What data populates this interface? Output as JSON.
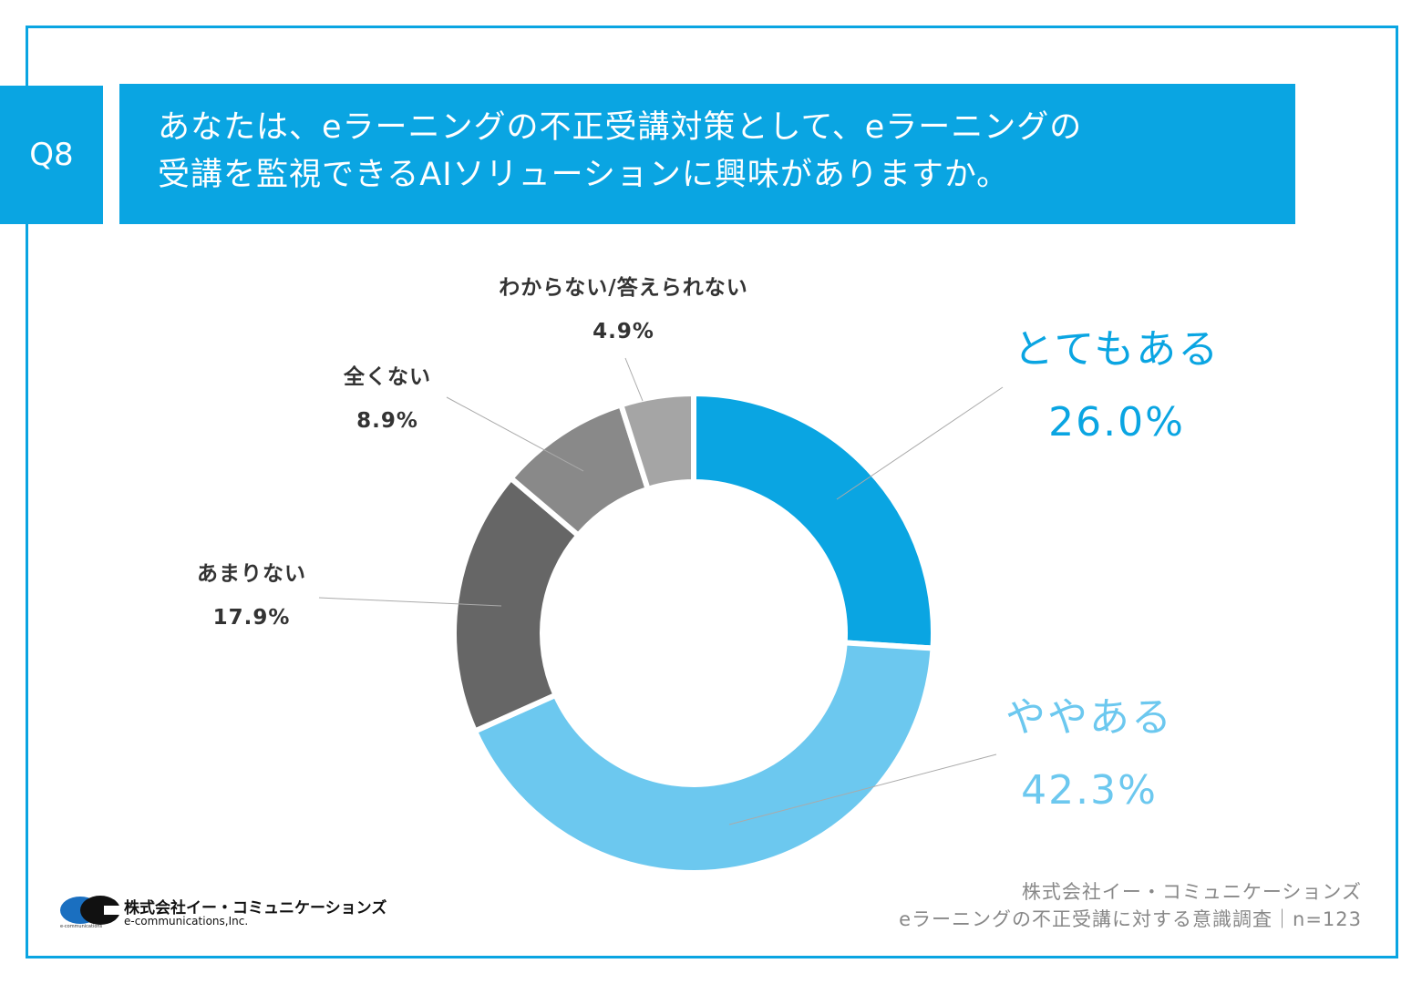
{
  "header": {
    "q_number": "Q8",
    "title_line1": "あなたは、eラーニングの不正受講対策として、eラーニングの",
    "title_line2": "受講を監視できるAIソリューションに興味がありますか。"
  },
  "chart_data": {
    "type": "pie",
    "donut": true,
    "start": "top, clockwise",
    "categories": [
      "とてもある",
      "ややある",
      "あまりない",
      "全くない",
      "わからない/答えられない"
    ],
    "values": [
      26.0,
      42.3,
      17.9,
      8.9,
      4.9
    ],
    "value_labels": [
      "26.0%",
      "42.3%",
      "17.9%",
      "8.9%",
      "4.9%"
    ],
    "colors": [
      "#0aa5e2",
      "#6cc8ef",
      "#666666",
      "#898989",
      "#a5a5a5"
    ],
    "title": "",
    "legend": "none"
  },
  "footer": {
    "line1": "株式会社イー・コミュニケーションズ",
    "line2": "eラーニングの不正受講に対する意識調査｜n=123"
  },
  "logo": {
    "jp": "株式会社イー・コミュニケーションズ",
    "en": "e-communications,Inc.",
    "small": "e-communications"
  }
}
